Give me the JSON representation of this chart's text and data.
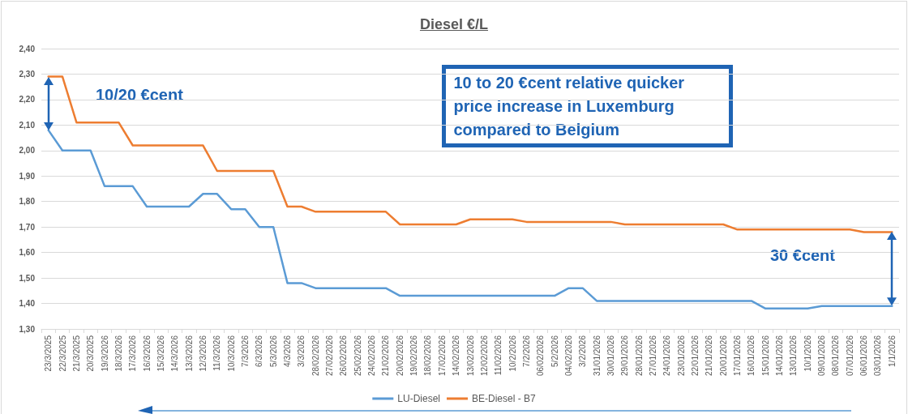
{
  "chart_data": {
    "type": "line",
    "title": "Diesel €/L",
    "categories": [
      "23/3/2025",
      "22/3/2025",
      "21/3/2025",
      "20/3/2025",
      "19/3/2026",
      "18/3/2026",
      "17/3/2026",
      "16/3/2026",
      "15/3/2026",
      "14/3/2026",
      "13/3/2026",
      "12/3/2026",
      "11/3/2026",
      "10/3/2026",
      "7/3/2026",
      "6/3/2026",
      "5/3/2026",
      "4/3/2026",
      "3/3/2026",
      "28/02/2026",
      "27/02/2026",
      "26/02/2026",
      "25/02/2026",
      "24/02/2026",
      "21/02/2026",
      "20/02/2026",
      "19/02/2026",
      "18/02/2026",
      "17/02/2026",
      "14/02/2026",
      "13/02/2026",
      "12/02/2026",
      "11/02/2026",
      "10/2/2026",
      "7/2/2026",
      "06/02/2026",
      "5/2/2026",
      "04/02/2026",
      "3/2/2026",
      "31/01/2026",
      "30/01/2026",
      "29/01/2026",
      "28/01/2026",
      "27/01/2026",
      "24/01/2026",
      "23/01/2026",
      "22/01/2026",
      "21/01/2026",
      "20/01/2026",
      "17/01/2026",
      "16/01/2026",
      "15/01/2026",
      "14/01/2026",
      "13/01/2026",
      "10/1/2026",
      "09/01/2026",
      "08/01/2026",
      "07/01/2026",
      "06/01/2026",
      "03/01/2026",
      "1/1/2026"
    ],
    "series": [
      {
        "name": "LU-Diesel",
        "color": "#5b9bd5",
        "values": [
          2.08,
          2.0,
          2.0,
          2.0,
          1.86,
          1.86,
          1.86,
          1.78,
          1.78,
          1.78,
          1.78,
          1.83,
          1.83,
          1.77,
          1.77,
          1.7,
          1.7,
          1.48,
          1.48,
          1.46,
          1.46,
          1.46,
          1.46,
          1.46,
          1.46,
          1.43,
          1.43,
          1.43,
          1.43,
          1.43,
          1.43,
          1.43,
          1.43,
          1.43,
          1.43,
          1.43,
          1.43,
          1.46,
          1.46,
          1.41,
          1.41,
          1.41,
          1.41,
          1.41,
          1.41,
          1.41,
          1.41,
          1.41,
          1.41,
          1.41,
          1.41,
          1.38,
          1.38,
          1.38,
          1.38,
          1.39,
          1.39,
          1.39,
          1.39,
          1.39,
          1.39
        ]
      },
      {
        "name": "BE-Diesel - B7",
        "color": "#ed7d31",
        "values": [
          2.29,
          2.29,
          2.11,
          2.11,
          2.11,
          2.11,
          2.02,
          2.02,
          2.02,
          2.02,
          2.02,
          2.02,
          1.92,
          1.92,
          1.92,
          1.92,
          1.92,
          1.78,
          1.78,
          1.76,
          1.76,
          1.76,
          1.76,
          1.76,
          1.76,
          1.71,
          1.71,
          1.71,
          1.71,
          1.71,
          1.73,
          1.73,
          1.73,
          1.73,
          1.72,
          1.72,
          1.72,
          1.72,
          1.72,
          1.72,
          1.72,
          1.71,
          1.71,
          1.71,
          1.71,
          1.71,
          1.71,
          1.71,
          1.71,
          1.69,
          1.69,
          1.69,
          1.69,
          1.69,
          1.69,
          1.69,
          1.69,
          1.69,
          1.68,
          1.68,
          1.68
        ]
      }
    ],
    "ylim": [
      1.3,
      2.4
    ],
    "yticks": [
      {
        "value": 1.3,
        "label": "1,30"
      },
      {
        "value": 1.4,
        "label": "1,40"
      },
      {
        "value": 1.5,
        "label": "1,50"
      },
      {
        "value": 1.6,
        "label": "1,60"
      },
      {
        "value": 1.7,
        "label": "1,70"
      },
      {
        "value": 1.8,
        "label": "1,80"
      },
      {
        "value": 1.9,
        "label": "1,90"
      },
      {
        "value": 2.0,
        "label": "2,00"
      },
      {
        "value": 2.1,
        "label": "2,10"
      },
      {
        "value": 2.2,
        "label": "2,20"
      },
      {
        "value": 2.3,
        "label": "2,30"
      },
      {
        "value": 2.4,
        "label": "2,40"
      }
    ],
    "grid": "y",
    "legend": "bottom",
    "marker": "none",
    "line_style": "solid",
    "annotations": [
      "10/20 €cent",
      "10 to 20 €cent relative quicker price increase in Luxemburg compared to Belgium",
      "30 €cent"
    ]
  }
}
